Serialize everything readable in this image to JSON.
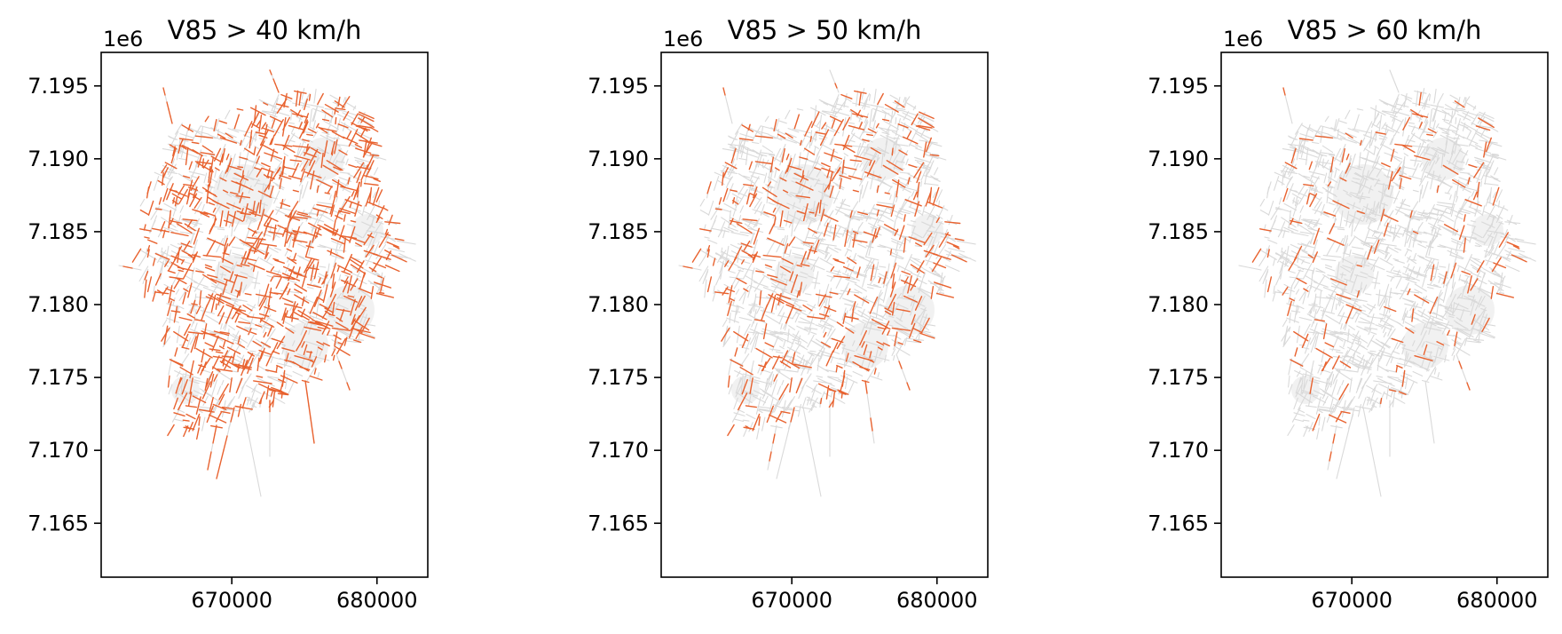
{
  "chart_data": [
    {
      "type": "map",
      "title": "V85 > 40 km/h",
      "highlight_share": 0.55,
      "y_offset": "1e6",
      "yticks": [
        "7.195",
        "7.190",
        "7.185",
        "7.180",
        "7.175",
        "7.170",
        "7.165"
      ],
      "ytick_values": [
        7.195,
        7.19,
        7.185,
        7.18,
        7.175,
        7.17,
        7.165
      ],
      "xticks": [
        "670000",
        "680000"
      ],
      "xtick_values": [
        670000,
        680000
      ],
      "xlim": [
        661000,
        683500
      ],
      "ylim": [
        7.1613,
        7.1973
      ]
    },
    {
      "type": "map",
      "title": "V85 > 50 km/h",
      "highlight_share": 0.25,
      "y_offset": "1e6",
      "yticks": [
        "7.195",
        "7.190",
        "7.185",
        "7.180",
        "7.175",
        "7.170",
        "7.165"
      ],
      "ytick_values": [
        7.195,
        7.19,
        7.185,
        7.18,
        7.175,
        7.17,
        7.165
      ],
      "xticks": [
        "670000",
        "680000"
      ],
      "xtick_values": [
        670000,
        680000
      ],
      "xlim": [
        661000,
        683500
      ],
      "ylim": [
        7.1613,
        7.1973
      ]
    },
    {
      "type": "map",
      "title": "V85 > 60 km/h",
      "highlight_share": 0.1,
      "y_offset": "1e6",
      "yticks": [
        "7.195",
        "7.190",
        "7.185",
        "7.180",
        "7.175",
        "7.170",
        "7.165"
      ],
      "ytick_values": [
        7.195,
        7.19,
        7.185,
        7.18,
        7.175,
        7.17,
        7.165
      ],
      "xticks": [
        "670000",
        "680000"
      ],
      "xtick_values": [
        670000,
        680000
      ],
      "xlim": [
        661000,
        683500
      ],
      "ylim": [
        7.1613,
        7.1973
      ]
    }
  ],
  "colors": {
    "road_network": "#d9d9d9",
    "highlight": "#e8622f",
    "frame": "#000000"
  }
}
